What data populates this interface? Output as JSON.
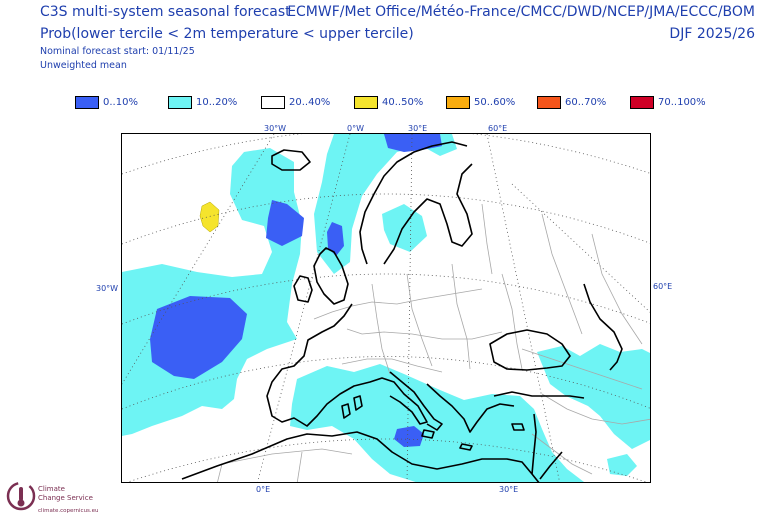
{
  "header": {
    "title": "C3S multi-system seasonal forecast",
    "subtitle": "Prob(lower tercile < 2m temperature < upper tercile)",
    "start": "Nominal forecast start: 01/11/25",
    "mean": "Unweighted mean",
    "centres": "ECMWF/Met Office/Météo-France/CMCC/DWD/NCEP/JMA/ECCC/BOM",
    "season": "DJF 2025/26"
  },
  "legend": [
    {
      "label": "0..10%",
      "color": "#3a5ff5"
    },
    {
      "label": "10..20%",
      "color": "#6ef4f4"
    },
    {
      "label": "20..40%",
      "color": "#ffffff"
    },
    {
      "label": "40..50%",
      "color": "#f5e42d"
    },
    {
      "label": "50..60%",
      "color": "#f9ac0e"
    },
    {
      "label": "60..70%",
      "color": "#f5551b"
    },
    {
      "label": "70..100%",
      "color": "#cf0026"
    }
  ],
  "lon_labels": {
    "top": [
      "30°W",
      "0°W",
      "30°E",
      "60°E"
    ],
    "left": "30°W",
    "right": "60°E",
    "bottom": [
      "0°E",
      "30°E"
    ]
  },
  "logo": {
    "name_line1": "Climate",
    "name_line2": "Change Service",
    "url": "climate.copernicus.eu"
  },
  "colors": {
    "text": "#1f3fae",
    "coast": "#000000",
    "borders": "#a8a8a8",
    "graticule": "#555555"
  }
}
